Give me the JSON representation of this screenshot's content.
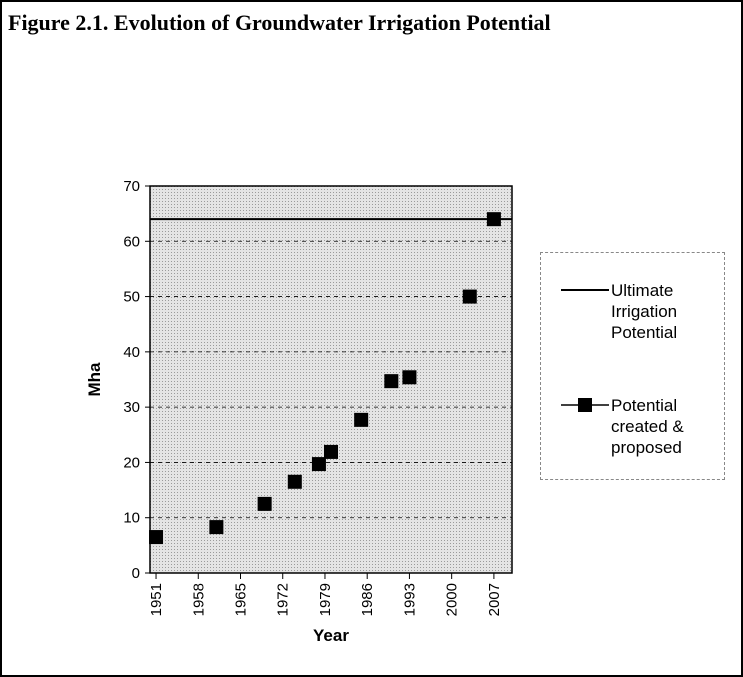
{
  "chart_data": {
    "type": "scatter",
    "title": "Figure 2.1.  Evolution of Groundwater Irrigation Potential",
    "xlabel": "Year",
    "ylabel": "Mha",
    "xlim": [
      1950,
      2010
    ],
    "xticks": [
      1951,
      1958,
      1965,
      1972,
      1979,
      1986,
      1993,
      2000,
      2007
    ],
    "ylim": [
      0,
      70
    ],
    "yticks": [
      0,
      10,
      20,
      30,
      40,
      50,
      60,
      70
    ],
    "grid": true,
    "legend": "right",
    "series": [
      {
        "name": "Ultimate Irrigation Potential",
        "color": "#000000",
        "type": "line",
        "x": [
          1950,
          2010
        ],
        "values": [
          64,
          64
        ]
      },
      {
        "name": "Potential created & proposed",
        "color": "#000000",
        "type": "scatter",
        "x": [
          1951,
          1961,
          1969,
          1974,
          1978,
          1980,
          1985,
          1990,
          1993,
          2003,
          2007
        ],
        "values": [
          6.5,
          8.3,
          12.5,
          16.5,
          19.7,
          21.9,
          27.7,
          34.7,
          35.4,
          50,
          64
        ]
      }
    ]
  }
}
